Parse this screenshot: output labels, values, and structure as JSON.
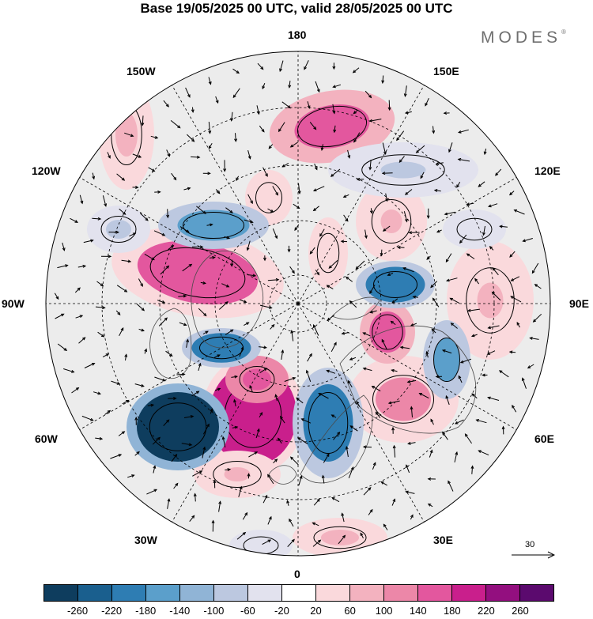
{
  "title": "Base 19/05/2025 00 UTC, valid 28/05/2025 00 UTC",
  "brand": {
    "text": "MODES",
    "mark": "®",
    "color": "#6f6f6f"
  },
  "longitude_labels": {
    "lon_180": "180",
    "lon_150E": "150E",
    "lon_120E": "120E",
    "lon_90E": "90E",
    "lon_60E": "60E",
    "lon_30E": "30E",
    "lon_0": "0",
    "lon_30W": "30W",
    "lon_60W": "60W",
    "lon_90W": "90W",
    "lon_120W": "120W",
    "lon_150W": "150W"
  },
  "projection": "north polar stereographic",
  "reference_vector": {
    "value": "30"
  },
  "colorbar": {
    "colors": [
      "#0e3d5e",
      "#1a5f8e",
      "#2e7db3",
      "#5b9fcb",
      "#90b4d6",
      "#bcc8e0",
      "#e2e2ee",
      "#ffffff",
      "#fad9dc",
      "#f3b2bf",
      "#ec87a8",
      "#e3579e",
      "#c91f8c",
      "#930f7f",
      "#5b0a6e"
    ],
    "ticks": [
      "-260",
      "-220",
      "-180",
      "-140",
      "-100",
      "-60",
      "-20",
      "20",
      "60",
      "100",
      "140",
      "180",
      "220",
      "260"
    ]
  }
}
